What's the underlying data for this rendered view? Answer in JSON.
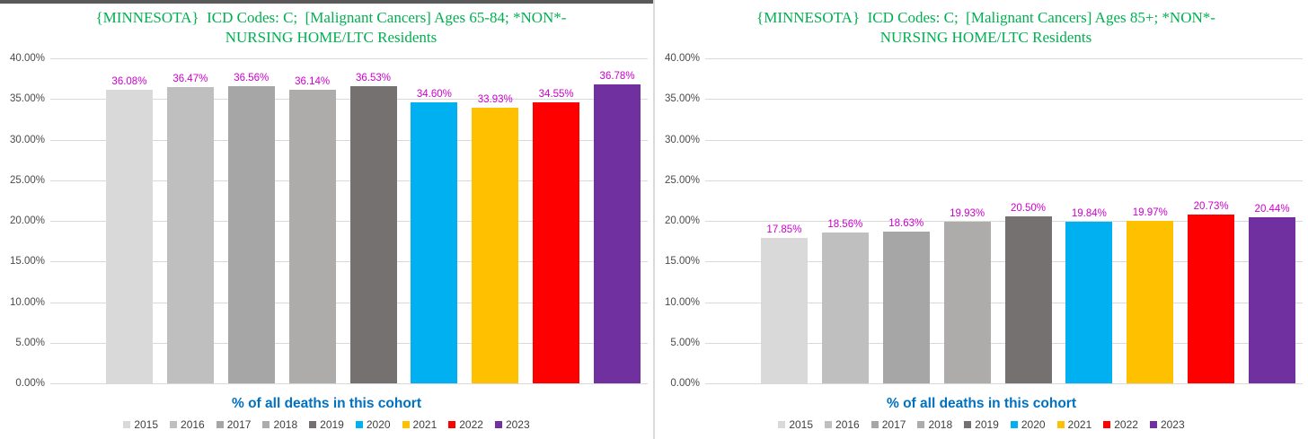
{
  "colors": {
    "title_green": "#00B050",
    "data_label_magenta": "#CC00CC",
    "xlabel_blue": "#0070C0",
    "axis_text": "#4a4a4a",
    "gridline": "#D9D9D9",
    "legend_text": "#404040",
    "panel_divider": "#D9D9D9",
    "top_strip": "#595959"
  },
  "chart_data": [
    {
      "type": "bar",
      "title": "{MINNESOTA}  ICD Codes: C;  [Malignant Cancers] Ages 65-84; *NON*-NURSING HOME/LTC Residents",
      "title_lines": {
        "0": "{MINNESOTA}  ICD Codes: C;  [Malignant Cancers] Ages 65-84; *NON*-",
        "1": "NURSING HOME/LTC Residents"
      },
      "xlabel": "% of all deaths in this cohort",
      "ylabel": "",
      "categories": [
        "2015",
        "2016",
        "2017",
        "2018",
        "2019",
        "2020",
        "2021",
        "2022",
        "2023"
      ],
      "values": [
        36.08,
        36.47,
        36.56,
        36.14,
        36.53,
        34.6,
        33.93,
        34.55,
        36.78
      ],
      "data_labels": [
        "36.08%",
        "36.47%",
        "36.56%",
        "36.14%",
        "36.53%",
        "34.60%",
        "33.93%",
        "34.55%",
        "36.78%"
      ],
      "bar_colors": [
        "#d9d9d9",
        "#bfbfbf",
        "#a6a6a6",
        "#aeabab",
        "#767171",
        "#00b0f0",
        "#ffc000",
        "#ff0000",
        "#7030a0"
      ],
      "ylim": [
        0,
        40
      ],
      "y_ticks": [
        "40.00%",
        "35.00%",
        "30.00%",
        "25.00%",
        "20.00%",
        "15.00%",
        "10.00%",
        "5.00%",
        "0.00%"
      ],
      "grid": true,
      "legend_position": "bottom"
    },
    {
      "type": "bar",
      "title": "{MINNESOTA}  ICD Codes: C;  [Malignant Cancers] Ages 85+; *NON*-NURSING HOME/LTC Residents",
      "title_lines": {
        "0": "{MINNESOTA}  ICD Codes: C;  [Malignant Cancers] Ages 85+; *NON*-",
        "1": "NURSING HOME/LTC Residents"
      },
      "xlabel": "% of all deaths in this cohort",
      "ylabel": "",
      "categories": [
        "2015",
        "2016",
        "2017",
        "2018",
        "2019",
        "2020",
        "2021",
        "2022",
        "2023"
      ],
      "values": [
        17.85,
        18.56,
        18.63,
        19.93,
        20.5,
        19.84,
        19.97,
        20.73,
        20.44
      ],
      "data_labels": [
        "17.85%",
        "18.56%",
        "18.63%",
        "19.93%",
        "20.50%",
        "19.84%",
        "19.97%",
        "20.73%",
        "20.44%"
      ],
      "bar_colors": [
        "#d9d9d9",
        "#bfbfbf",
        "#a6a6a6",
        "#aeabab",
        "#767171",
        "#00b0f0",
        "#ffc000",
        "#ff0000",
        "#7030a0"
      ],
      "ylim": [
        0,
        40
      ],
      "y_ticks": [
        "40.00%",
        "35.00%",
        "30.00%",
        "25.00%",
        "20.00%",
        "15.00%",
        "10.00%",
        "5.00%",
        "0.00%"
      ],
      "grid": true,
      "legend_position": "bottom"
    }
  ]
}
